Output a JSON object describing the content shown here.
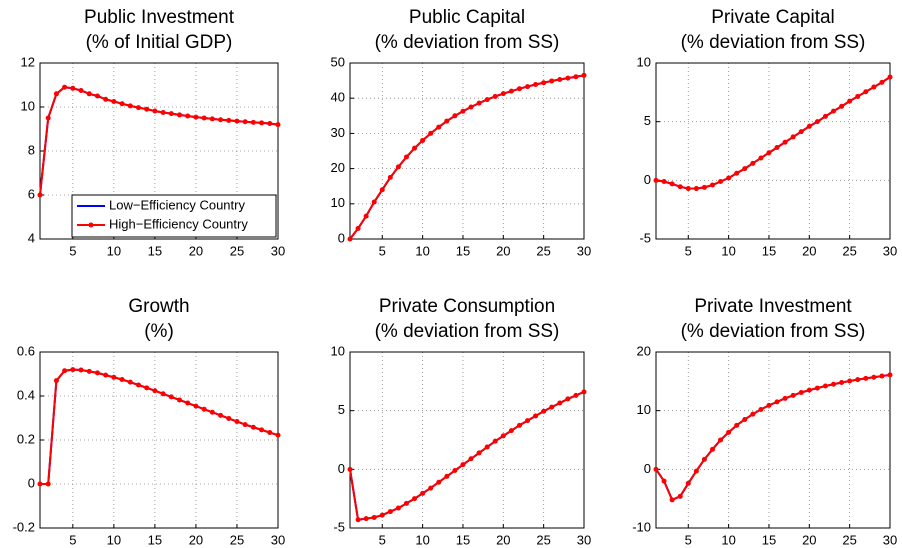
{
  "chart_data": [
    {
      "type": "line",
      "title": "Public Investment",
      "subtitle": "(% of Initial GDP)",
      "x": [
        1,
        2,
        3,
        4,
        5,
        6,
        7,
        8,
        9,
        10,
        11,
        12,
        13,
        14,
        15,
        16,
        17,
        18,
        19,
        20,
        21,
        22,
        23,
        24,
        25,
        26,
        27,
        28,
        29,
        30
      ],
      "xlim": [
        1,
        30
      ],
      "xticks": [
        5,
        10,
        15,
        20,
        25,
        30
      ],
      "ylim": [
        4,
        12
      ],
      "yticks": [
        4,
        6,
        8,
        10,
        12
      ],
      "grid": true,
      "legend": "lower right",
      "series": [
        {
          "name": "Low−Efficiency Country",
          "color": "#0000ff",
          "values": [
            6.0,
            9.5,
            10.6,
            10.9,
            10.85,
            10.75,
            10.6,
            10.5,
            10.35,
            10.25,
            10.15,
            10.05,
            9.97,
            9.9,
            9.82,
            9.75,
            9.7,
            9.64,
            9.59,
            9.54,
            9.5,
            9.46,
            9.42,
            9.39,
            9.36,
            9.33,
            9.3,
            9.28,
            9.25,
            9.2
          ]
        },
        {
          "name": "High−Efficiency Country",
          "color": "#ff0000",
          "marker": "o",
          "values": [
            6.0,
            9.5,
            10.6,
            10.9,
            10.85,
            10.75,
            10.6,
            10.5,
            10.35,
            10.25,
            10.15,
            10.05,
            9.97,
            9.9,
            9.82,
            9.75,
            9.7,
            9.64,
            9.59,
            9.54,
            9.5,
            9.46,
            9.42,
            9.39,
            9.36,
            9.33,
            9.3,
            9.28,
            9.25,
            9.2
          ]
        }
      ]
    },
    {
      "type": "line",
      "title": "Public Capital",
      "subtitle": "(% deviation from SS)",
      "x": [
        1,
        2,
        3,
        4,
        5,
        6,
        7,
        8,
        9,
        10,
        11,
        12,
        13,
        14,
        15,
        16,
        17,
        18,
        19,
        20,
        21,
        22,
        23,
        24,
        25,
        26,
        27,
        28,
        29,
        30
      ],
      "xlim": [
        1,
        30
      ],
      "xticks": [
        5,
        10,
        15,
        20,
        25,
        30
      ],
      "ylim": [
        0,
        50
      ],
      "yticks": [
        0,
        10,
        20,
        30,
        40,
        50
      ],
      "grid": true,
      "series": [
        {
          "color": "#0000ff",
          "values": [
            0,
            3,
            6.5,
            10.5,
            14,
            17.5,
            20.5,
            23.3,
            25.8,
            28,
            30,
            31.8,
            33.5,
            35,
            36.3,
            37.5,
            38.6,
            39.6,
            40.5,
            41.3,
            42,
            42.7,
            43.3,
            43.9,
            44.4,
            44.9,
            45.3,
            45.7,
            46.1,
            46.5
          ]
        },
        {
          "color": "#ff0000",
          "marker": "o",
          "values": [
            0,
            3,
            6.5,
            10.5,
            14,
            17.5,
            20.5,
            23.3,
            25.8,
            28,
            30,
            31.8,
            33.5,
            35,
            36.3,
            37.5,
            38.6,
            39.6,
            40.5,
            41.3,
            42,
            42.7,
            43.3,
            43.9,
            44.4,
            44.9,
            45.3,
            45.7,
            46.1,
            46.5
          ]
        }
      ]
    },
    {
      "type": "line",
      "title": "Private Capital",
      "subtitle": "(% deviation from SS)",
      "x": [
        1,
        2,
        3,
        4,
        5,
        6,
        7,
        8,
        9,
        10,
        11,
        12,
        13,
        14,
        15,
        16,
        17,
        18,
        19,
        20,
        21,
        22,
        23,
        24,
        25,
        26,
        27,
        28,
        29,
        30
      ],
      "xlim": [
        1,
        30
      ],
      "xticks": [
        5,
        10,
        15,
        20,
        25,
        30
      ],
      "ylim": [
        -5,
        10
      ],
      "yticks": [
        -5,
        0,
        5,
        10
      ],
      "grid": true,
      "series": [
        {
          "color": "#0000ff",
          "values": [
            0,
            -0.1,
            -0.3,
            -0.55,
            -0.7,
            -0.7,
            -0.6,
            -0.4,
            -0.1,
            0.2,
            0.6,
            1.0,
            1.45,
            1.9,
            2.35,
            2.8,
            3.25,
            3.7,
            4.15,
            4.6,
            5.0,
            5.45,
            5.9,
            6.3,
            6.75,
            7.15,
            7.55,
            7.95,
            8.35,
            8.8
          ]
        },
        {
          "color": "#ff0000",
          "marker": "o",
          "values": [
            0,
            -0.1,
            -0.3,
            -0.55,
            -0.7,
            -0.7,
            -0.6,
            -0.4,
            -0.1,
            0.2,
            0.6,
            1.0,
            1.45,
            1.9,
            2.35,
            2.8,
            3.25,
            3.7,
            4.15,
            4.6,
            5.0,
            5.45,
            5.9,
            6.3,
            6.75,
            7.15,
            7.55,
            7.95,
            8.35,
            8.8
          ]
        }
      ]
    },
    {
      "type": "line",
      "title": "Growth",
      "subtitle": "(%)",
      "x": [
        1,
        2,
        3,
        4,
        5,
        6,
        7,
        8,
        9,
        10,
        11,
        12,
        13,
        14,
        15,
        16,
        17,
        18,
        19,
        20,
        21,
        22,
        23,
        24,
        25,
        26,
        27,
        28,
        29,
        30
      ],
      "xlim": [
        1,
        30
      ],
      "xticks": [
        5,
        10,
        15,
        20,
        25,
        30
      ],
      "ylim": [
        -0.2,
        0.6
      ],
      "yticks": [
        -0.2,
        0,
        0.2,
        0.4,
        0.6
      ],
      "grid": true,
      "series": [
        {
          "color": "#0000ff",
          "values": [
            0,
            0,
            0.47,
            0.515,
            0.52,
            0.518,
            0.512,
            0.505,
            0.495,
            0.485,
            0.475,
            0.463,
            0.45,
            0.437,
            0.424,
            0.41,
            0.396,
            0.382,
            0.368,
            0.354,
            0.34,
            0.326,
            0.312,
            0.298,
            0.284,
            0.27,
            0.258,
            0.246,
            0.234,
            0.222
          ]
        },
        {
          "color": "#ff0000",
          "marker": "o",
          "values": [
            0,
            0,
            0.47,
            0.515,
            0.52,
            0.518,
            0.512,
            0.505,
            0.495,
            0.485,
            0.475,
            0.463,
            0.45,
            0.437,
            0.424,
            0.41,
            0.396,
            0.382,
            0.368,
            0.354,
            0.34,
            0.326,
            0.312,
            0.298,
            0.284,
            0.27,
            0.258,
            0.246,
            0.234,
            0.222
          ]
        }
      ]
    },
    {
      "type": "line",
      "title": "Private Consumption",
      "subtitle": "(% deviation from SS)",
      "x": [
        1,
        2,
        3,
        4,
        5,
        6,
        7,
        8,
        9,
        10,
        11,
        12,
        13,
        14,
        15,
        16,
        17,
        18,
        19,
        20,
        21,
        22,
        23,
        24,
        25,
        26,
        27,
        28,
        29,
        30
      ],
      "xlim": [
        1,
        30
      ],
      "xticks": [
        5,
        10,
        15,
        20,
        25,
        30
      ],
      "ylim": [
        -5,
        10
      ],
      "yticks": [
        -5,
        0,
        5,
        10
      ],
      "grid": true,
      "series": [
        {
          "color": "#0000ff",
          "values": [
            0,
            -4.3,
            -4.2,
            -4.1,
            -3.9,
            -3.6,
            -3.3,
            -2.9,
            -2.5,
            -2.05,
            -1.6,
            -1.1,
            -0.6,
            -0.1,
            0.4,
            0.9,
            1.4,
            1.9,
            2.4,
            2.85,
            3.3,
            3.75,
            4.15,
            4.55,
            4.95,
            5.3,
            5.65,
            6.0,
            6.3,
            6.6
          ]
        },
        {
          "color": "#ff0000",
          "marker": "o",
          "values": [
            0,
            -4.3,
            -4.2,
            -4.1,
            -3.9,
            -3.6,
            -3.3,
            -2.9,
            -2.5,
            -2.05,
            -1.6,
            -1.1,
            -0.6,
            -0.1,
            0.4,
            0.9,
            1.4,
            1.9,
            2.4,
            2.85,
            3.3,
            3.75,
            4.15,
            4.55,
            4.95,
            5.3,
            5.65,
            6.0,
            6.3,
            6.6
          ]
        }
      ]
    },
    {
      "type": "line",
      "title": "Private Investment",
      "subtitle": "(% deviation from SS)",
      "x": [
        1,
        2,
        3,
        4,
        5,
        6,
        7,
        8,
        9,
        10,
        11,
        12,
        13,
        14,
        15,
        16,
        17,
        18,
        19,
        20,
        21,
        22,
        23,
        24,
        25,
        26,
        27,
        28,
        29,
        30
      ],
      "xlim": [
        1,
        30
      ],
      "xticks": [
        5,
        10,
        15,
        20,
        25,
        30
      ],
      "ylim": [
        -10,
        20
      ],
      "yticks": [
        -10,
        0,
        10,
        20
      ],
      "grid": true,
      "series": [
        {
          "color": "#0000ff",
          "values": [
            0,
            -2,
            -5.2,
            -4.6,
            -2.4,
            -0.3,
            1.7,
            3.4,
            5,
            6.3,
            7.5,
            8.5,
            9.4,
            10.2,
            10.9,
            11.5,
            12.1,
            12.6,
            13.1,
            13.5,
            13.85,
            14.2,
            14.5,
            14.8,
            15.05,
            15.3,
            15.5,
            15.7,
            15.9,
            16.1
          ]
        },
        {
          "color": "#ff0000",
          "marker": "o",
          "values": [
            0,
            -2,
            -5.2,
            -4.6,
            -2.4,
            -0.3,
            1.7,
            3.4,
            5,
            6.3,
            7.5,
            8.5,
            9.4,
            10.2,
            10.9,
            11.5,
            12.1,
            12.6,
            13.1,
            13.5,
            13.85,
            14.2,
            14.5,
            14.8,
            15.05,
            15.3,
            15.5,
            15.7,
            15.9,
            16.1
          ]
        }
      ]
    }
  ]
}
